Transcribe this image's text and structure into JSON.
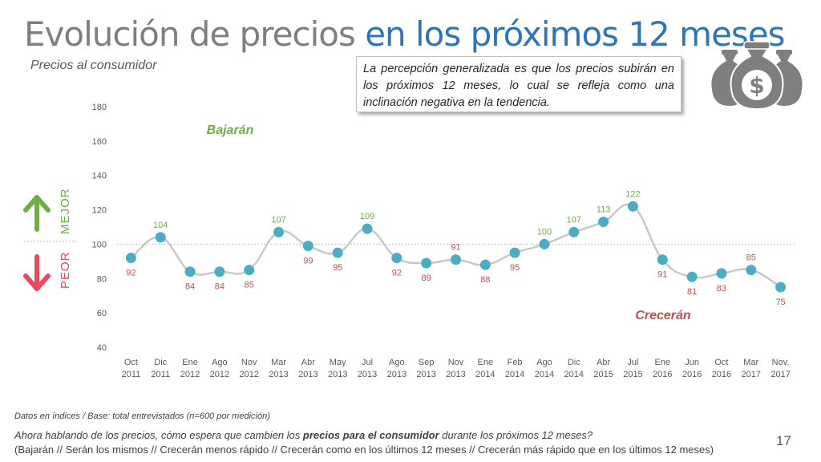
{
  "header": {
    "title_part1": "Evolución de precios ",
    "title_part2": "en los próximos 12 meses",
    "subtitle": "Precios al consumidor"
  },
  "callout": {
    "text": "La percepción generalizada es que los precios subirán en los próximos 12 meses, lo cual se refleja como una inclinación negativa en la tendencia."
  },
  "indicators": {
    "better_label": "MEJOR",
    "worse_label": "PEOR",
    "better_color": "#70ad47",
    "worse_color": "#e84a5f"
  },
  "icons": {
    "money": "money-bags-icon",
    "up": "arrow-up-icon",
    "down": "arrow-down-icon"
  },
  "chart_data": {
    "type": "line",
    "categories": [
      "Oct\n2011",
      "Dic\n2011",
      "Ene\n2012",
      "Ago\n2012",
      "Nov\n2012",
      "Mar\n2013",
      "Abr\n2013",
      "May\n2013",
      "Jul\n2013",
      "Ago\n2013",
      "Sep\n2013",
      "Nov\n2013",
      "Ene\n2014",
      "Feb\n2014",
      "Ago\n2014",
      "Dic\n2014",
      "Abr\n2015",
      "Jul\n2015",
      "Ene\n2016",
      "Jun\n2016",
      "Oct\n2016",
      "Mar\n2017",
      "Nov.\n2017"
    ],
    "values": [
      92,
      104,
      84,
      84,
      85,
      107,
      99,
      95,
      109,
      92,
      89,
      91,
      88,
      95,
      100,
      107,
      113,
      122,
      91,
      81,
      83,
      85,
      75
    ],
    "ylim": [
      40,
      180
    ],
    "yticks": [
      40,
      60,
      80,
      100,
      120,
      140,
      160,
      180
    ],
    "reference_line": 100,
    "annotation_top": "Bajarán",
    "annotation_bottom": "Crecerán",
    "colors": {
      "line": "#c8c8c8",
      "marker": "#4bacc6",
      "above": "#70ad47",
      "below": "#c0504d",
      "axis_text": "#595959"
    }
  },
  "footer": {
    "source": "Datos en índices / Base: total entrevistados (n=600 por medición)",
    "question_pre": "Ahora hablando de los precios, cómo espera que cambien los ",
    "question_bold": "precios para el consumidor",
    "question_post": " durante los próximos 12 meses?",
    "options": "(Bajarán // Serán los mismos // Crecerán menos rápido // Crecerán como en los últimos 12 meses // Crecerán más rápido que en los últimos 12 meses)",
    "page_number": "17"
  }
}
